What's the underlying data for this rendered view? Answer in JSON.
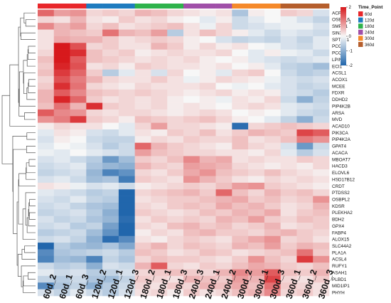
{
  "chart_data": {
    "type": "heatmap",
    "title": "",
    "columns": [
      "60d_2",
      "60d_1",
      "60d_3",
      "120d_2",
      "120d_1",
      "120d_3",
      "180d_2",
      "180d_1",
      "180d_3",
      "240d_3",
      "240d_1",
      "240d_2",
      "300d_2",
      "300d_1",
      "300d_3",
      "360d_1",
      "360d_2",
      "360d_3"
    ],
    "column_groups": [
      "60d",
      "60d",
      "60d",
      "120d",
      "120d",
      "120d",
      "180d",
      "180d",
      "180d",
      "240d",
      "240d",
      "240d",
      "300d",
      "300d",
      "300d",
      "360d",
      "360d",
      "360d"
    ],
    "rows": [
      "ACP6",
      "OSBPL6",
      "SMPD1",
      "SIN3A",
      "SPTLC1",
      "PCCA",
      "PCCB",
      "LPIN1",
      "ECI1",
      "ACSL1",
      "ACOX1",
      "MCEE",
      "FDXR",
      "DDHD2",
      "PIP4K2B",
      "ARSA",
      "MVD",
      "ACAD10",
      "PIK3CA",
      "PIP4K2A",
      "GPAT4",
      "ACACA",
      "MBOAT7",
      "HACD3",
      "ELOVL6",
      "HSD17B12",
      "CRDT",
      "PTDSS2",
      "OSBPL2",
      "KDSR",
      "PLEKHA2",
      "BDH2",
      "GPX4",
      "FABP4",
      "ALOX15",
      "SLC44A2",
      "PLA1A",
      "ACSL4",
      "RUFY1",
      "ASAH1",
      "PLBD1",
      "MID1IP1",
      "PHYH"
    ],
    "values": [
      [
        1.3,
        0.8,
        0.9,
        0.3,
        0.4,
        0.3,
        0.6,
        0.5,
        0.3,
        0.2,
        0.1,
        0.2,
        -0.7,
        0.1,
        0.0,
        0.4,
        0.3,
        -0.3
      ],
      [
        0.3,
        0.2,
        0.6,
        0.2,
        0.1,
        0.4,
        0.2,
        0.3,
        0.1,
        0.0,
        -0.2,
        0.1,
        -0.4,
        -0.2,
        0.0,
        -0.1,
        -0.3,
        -0.5
      ],
      [
        1.0,
        0.6,
        0.8,
        0.3,
        0.5,
        0.2,
        0.3,
        0.4,
        0.5,
        0.2,
        -0.1,
        0.3,
        -0.4,
        -0.3,
        -0.2,
        -0.1,
        -0.1,
        -0.3
      ],
      [
        0.2,
        0.6,
        0.5,
        0.4,
        1.2,
        0.6,
        0.5,
        0.8,
        -0.6,
        0.2,
        0.5,
        0.3,
        0.1,
        -0.2,
        -0.4,
        -0.2,
        -0.3,
        -0.4
      ],
      [
        0.2,
        0.7,
        0.6,
        0.6,
        0.4,
        0.2,
        0.3,
        0.4,
        0.3,
        0.1,
        0.0,
        -0.3,
        -0.5,
        -0.4,
        -0.5,
        -0.3,
        -0.5,
        -0.2
      ],
      [
        0.2,
        2.1,
        1.5,
        0.3,
        0.4,
        0.2,
        0.2,
        0.6,
        0.4,
        0.1,
        0.3,
        0.1,
        0.2,
        0.0,
        -0.1,
        -0.3,
        -0.4,
        -0.2
      ],
      [
        0.3,
        2.2,
        1.8,
        0.5,
        0.3,
        0.4,
        0.1,
        0.2,
        0.3,
        0.2,
        0.2,
        0.3,
        0.0,
        -0.2,
        0.1,
        -0.1,
        -0.2,
        -0.4
      ],
      [
        0.5,
        2.0,
        1.4,
        0.5,
        0.4,
        0.3,
        0.2,
        0.3,
        0.2,
        0.3,
        0.1,
        0.0,
        0.1,
        -0.2,
        -0.3,
        -0.4,
        -0.3,
        -0.2
      ],
      [
        0.4,
        1.9,
        1.5,
        0.2,
        0.3,
        0.1,
        0.4,
        0.3,
        0.2,
        0.2,
        0.1,
        0.2,
        0.0,
        0.1,
        -0.2,
        -0.5,
        -0.6,
        -0.8
      ],
      [
        0.5,
        1.7,
        1.3,
        0.4,
        -0.6,
        -0.2,
        0.2,
        -0.3,
        0.3,
        0.0,
        0.1,
        -0.2,
        0.3,
        0.4,
        0.0,
        -0.4,
        -0.6,
        -0.5
      ],
      [
        0.3,
        1.5,
        1.1,
        0.6,
        0.3,
        0.2,
        0.2,
        0.4,
        0.2,
        -0.1,
        0.1,
        0.3,
        0.2,
        0.1,
        -0.1,
        -0.3,
        -0.4,
        -0.3
      ],
      [
        0.4,
        1.8,
        1.2,
        0.3,
        0.2,
        0.1,
        0.3,
        0.2,
        0.2,
        0.2,
        0.3,
        0.0,
        -0.1,
        0.0,
        -0.2,
        -0.3,
        -0.5,
        -0.4
      ],
      [
        0.6,
        1.4,
        1.0,
        0.5,
        0.4,
        0.3,
        0.4,
        0.3,
        0.2,
        0.1,
        0.2,
        0.3,
        0.1,
        0.2,
        0.1,
        -0.3,
        -0.4,
        -0.6
      ],
      [
        0.6,
        1.9,
        1.3,
        0.4,
        0.2,
        0.3,
        0.2,
        0.3,
        0.1,
        0.0,
        0.1,
        -0.1,
        0.2,
        0.1,
        0.3,
        -0.4,
        -1.0,
        -0.5
      ],
      [
        0.5,
        1.2,
        0.6,
        1.8,
        0.4,
        0.3,
        0.2,
        0.3,
        0.1,
        0.2,
        0.1,
        0.0,
        0.2,
        0.3,
        0.2,
        -0.2,
        -0.3,
        -0.4
      ],
      [
        1.4,
        1.0,
        0.9,
        0.3,
        0.2,
        0.3,
        0.3,
        0.2,
        0.1,
        0.2,
        0.3,
        0.2,
        0.0,
        0.1,
        0.0,
        -0.2,
        -0.4,
        -0.5
      ],
      [
        0.9,
        1.1,
        1.7,
        0.4,
        0.3,
        0.1,
        0.5,
        0.4,
        0.3,
        0.4,
        0.5,
        0.3,
        0.1,
        0.0,
        -0.2,
        -0.5,
        -1.0,
        -0.4
      ],
      [
        0.1,
        0.3,
        0.2,
        0.2,
        0.0,
        -0.2,
        0.3,
        0.8,
        0.3,
        0.3,
        0.2,
        0.1,
        -1.9,
        0.3,
        0.4,
        0.5,
        0.4,
        0.3
      ],
      [
        -0.2,
        0.2,
        0.1,
        -0.3,
        -0.4,
        -0.2,
        0.2,
        0.1,
        0.4,
        0.3,
        0.5,
        0.2,
        0.4,
        0.6,
        0.5,
        0.4,
        1.6,
        1.4
      ],
      [
        -0.3,
        0.1,
        0.0,
        -0.4,
        -0.5,
        -0.5,
        0.1,
        0.3,
        0.2,
        0.4,
        0.3,
        0.3,
        0.5,
        0.2,
        0.3,
        0.5,
        1.1,
        0.9
      ],
      [
        -0.2,
        0.0,
        -0.1,
        -0.3,
        -0.6,
        -0.4,
        1.3,
        0.6,
        0.4,
        0.3,
        0.2,
        0.1,
        0.5,
        0.3,
        0.2,
        -0.3,
        -1.3,
        -0.4
      ],
      [
        -0.1,
        -0.2,
        0.0,
        -0.2,
        -0.3,
        -0.4,
        0.8,
        0.5,
        0.4,
        0.3,
        0.3,
        0.2,
        0.2,
        0.1,
        0.3,
        -0.2,
        -0.6,
        -0.3
      ],
      [
        -0.3,
        -0.2,
        -0.4,
        -0.6,
        -1.3,
        -0.8,
        0.4,
        0.3,
        0.5,
        1.0,
        0.6,
        0.7,
        0.2,
        0.3,
        0.2,
        0.2,
        0.4,
        0.3
      ],
      [
        -0.4,
        -0.3,
        -0.2,
        -0.7,
        -0.9,
        -1.0,
        0.6,
        0.4,
        0.3,
        0.8,
        0.7,
        0.6,
        0.3,
        0.2,
        0.1,
        0.2,
        0.1,
        0.3
      ],
      [
        -0.5,
        -0.4,
        -0.3,
        -0.9,
        -1.6,
        -1.4,
        0.3,
        0.2,
        0.4,
        0.7,
        0.9,
        0.5,
        0.4,
        0.3,
        0.5,
        0.3,
        0.2,
        0.1
      ],
      [
        -0.3,
        -0.2,
        -0.4,
        -0.8,
        -0.7,
        -1.7,
        0.4,
        0.3,
        0.2,
        0.9,
        0.6,
        0.4,
        0.2,
        0.1,
        0.3,
        0.2,
        0.3,
        0.2
      ],
      [
        0.2,
        0.1,
        -0.1,
        -0.3,
        -0.2,
        -0.4,
        0.1,
        0.2,
        0.3,
        0.4,
        0.3,
        0.5,
        0.8,
        0.9,
        0.4,
        0.3,
        0.2,
        0.1
      ],
      [
        -0.2,
        -0.3,
        -0.4,
        -0.6,
        -0.5,
        -2.0,
        0.3,
        0.4,
        0.5,
        0.6,
        0.4,
        1.3,
        0.5,
        0.3,
        0.6,
        0.4,
        0.5,
        0.3
      ],
      [
        -0.3,
        -0.4,
        -0.2,
        -0.5,
        -0.6,
        -2.1,
        0.2,
        0.3,
        0.4,
        0.4,
        0.5,
        0.6,
        0.7,
        0.4,
        0.5,
        0.3,
        0.4,
        0.9
      ],
      [
        -0.4,
        -0.3,
        -0.5,
        -0.7,
        -0.8,
        -2.0,
        0.3,
        0.2,
        0.4,
        0.5,
        0.4,
        0.7,
        0.5,
        0.6,
        0.4,
        0.2,
        0.3,
        0.6
      ],
      [
        -0.5,
        -0.4,
        -0.3,
        -0.6,
        -1.0,
        -2.1,
        0.4,
        0.3,
        0.2,
        0.3,
        0.5,
        0.4,
        0.6,
        0.5,
        0.7,
        0.2,
        0.4,
        0.5
      ],
      [
        -0.3,
        -0.5,
        -0.4,
        -0.7,
        -0.9,
        -1.9,
        0.2,
        0.4,
        0.3,
        0.4,
        0.3,
        0.6,
        0.5,
        0.8,
        0.4,
        0.3,
        0.5,
        0.4
      ],
      [
        -0.4,
        -0.3,
        -0.6,
        -0.5,
        -1.2,
        -2.0,
        0.3,
        0.2,
        0.5,
        0.6,
        0.4,
        0.5,
        0.3,
        0.4,
        0.6,
        0.2,
        0.3,
        0.4
      ],
      [
        -0.6,
        -0.5,
        -0.4,
        -0.8,
        -1.4,
        -2.0,
        0.1,
        0.3,
        0.2,
        0.5,
        0.6,
        0.4,
        0.4,
        0.3,
        0.5,
        0.6,
        0.4,
        0.3
      ],
      [
        -0.4,
        -0.3,
        -0.5,
        -1.0,
        -1.9,
        -1.5,
        0.2,
        0.1,
        0.3,
        0.4,
        0.3,
        0.2,
        0.5,
        0.7,
        0.9,
        0.3,
        0.4,
        0.2
      ],
      [
        -2.0,
        -0.6,
        -0.8,
        -0.9,
        -0.7,
        -1.1,
        0.4,
        0.6,
        0.3,
        0.5,
        0.4,
        0.3,
        0.6,
        0.5,
        0.8,
        0.4,
        0.6,
        0.5
      ],
      [
        -1.5,
        -0.7,
        -0.6,
        -0.5,
        -0.4,
        -0.6,
        0.5,
        0.4,
        0.2,
        0.3,
        0.5,
        0.4,
        0.2,
        0.3,
        0.4,
        0.5,
        1.2,
        0.4
      ],
      [
        -1.6,
        -0.8,
        -0.9,
        -1.6,
        -0.5,
        -0.7,
        0.3,
        0.5,
        0.4,
        0.4,
        0.3,
        0.2,
        0.4,
        0.9,
        0.5,
        0.3,
        1.7,
        0.9
      ],
      [
        -0.4,
        -0.6,
        -0.5,
        -1.0,
        -0.3,
        -0.4,
        0.6,
        1.4,
        0.3,
        0.2,
        0.4,
        0.3,
        0.5,
        0.7,
        0.6,
        0.4,
        0.3,
        0.5
      ],
      [
        -0.2,
        -0.4,
        -0.3,
        -0.6,
        -0.5,
        -0.3,
        0.3,
        0.4,
        0.5,
        0.4,
        0.3,
        0.6,
        1.0,
        0.8,
        1.4,
        0.5,
        0.4,
        0.6
      ],
      [
        -0.5,
        -0.6,
        -0.4,
        -0.7,
        -0.8,
        -0.5,
        0.4,
        0.3,
        0.2,
        0.6,
        0.5,
        0.4,
        0.8,
        0.6,
        1.6,
        0.3,
        0.2,
        0.4
      ],
      [
        -1.5,
        -0.7,
        -0.5,
        -1.0,
        -0.6,
        -0.4,
        0.3,
        0.2,
        0.4,
        0.3,
        0.6,
        0.5,
        0.7,
        0.5,
        1.2,
        0.4,
        0.3,
        0.2
      ],
      [
        -0.3,
        -0.5,
        -0.2,
        -0.4,
        -0.6,
        -0.3,
        0.2,
        0.3,
        0.1,
        0.4,
        0.2,
        0.3,
        0.5,
        0.6,
        1.0,
        0.3,
        0.4,
        0.2
      ]
    ],
    "color_scale": {
      "min": -2,
      "max": 2,
      "low": "#2166ac",
      "mid": "#f7f7f7",
      "high": "#d7191c",
      "ticks": [
        -2,
        -1,
        0,
        1,
        2
      ]
    },
    "legend": {
      "title": "Time_Point",
      "groups": [
        "60d",
        "120d",
        "180d",
        "240d",
        "300d",
        "360d"
      ],
      "colors": [
        "#e8262a",
        "#1e7bbf",
        "#2eb24b",
        "#a04fa8",
        "#f5892a",
        "#b55e2c"
      ]
    }
  }
}
